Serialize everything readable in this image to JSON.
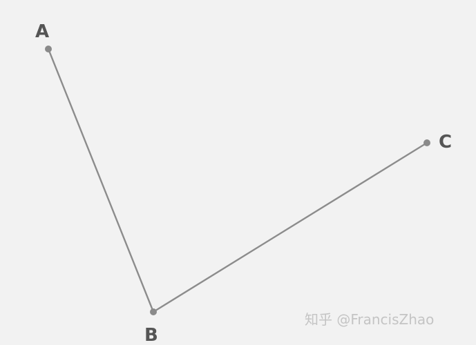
{
  "colors": {
    "background": "#f2f2f2",
    "line": "#8c8c8c",
    "point": "#8a8a8a",
    "label": "#555555",
    "watermark": "#c4c4c4"
  },
  "points": [
    {
      "id": "A",
      "label": "A"
    },
    {
      "id": "B",
      "label": "B"
    },
    {
      "id": "C",
      "label": "C"
    }
  ],
  "segments": [
    {
      "from": "A",
      "to": "B"
    },
    {
      "from": "B",
      "to": "C"
    }
  ],
  "watermark": "知乎 @FrancisZhao"
}
